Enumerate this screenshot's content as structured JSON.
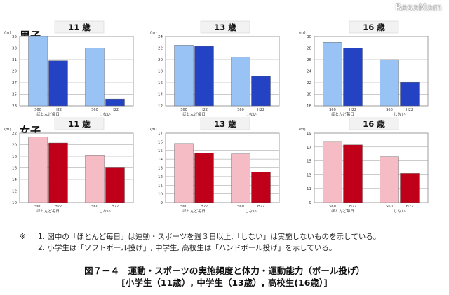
{
  "watermark": "ReseMom",
  "labels": {
    "boys": "男子",
    "girls": "女子"
  },
  "colors": {
    "boys_s60": "#99c3f5",
    "boys_h22": "#2443c4",
    "girls_s60": "#f6bcc6",
    "girls_h22": "#c00018"
  },
  "notes": {
    "mark": "※",
    "line1": "1. 図中の「ほとんど毎日」は運動・スポーツを週３日以上,「しない」は実施しないものを示している。",
    "line2": "2. 小学生は「ソフトボール投げ」, 中学生, 高校生は「ハンドボール投げ」を示している。"
  },
  "caption": {
    "line1": "図７－４　運動・スポーツの実施頻度と体力・運動能力（ボール投げ）",
    "line2": "[小学生（11歳）, 中学生（13歳）, 高校生(16歳）]"
  },
  "chart_data": [
    {
      "type": "bar",
      "title": "11 歳",
      "ylabel": "(m)",
      "ylim": [
        23,
        35
      ],
      "yticks": [
        23,
        25,
        27,
        29,
        31,
        33,
        35
      ],
      "categories": [
        "ほとんど毎日",
        "しない"
      ],
      "series": [
        {
          "name": "S60",
          "values": [
            35.0,
            33.0
          ]
        },
        {
          "name": "H22",
          "values": [
            30.8,
            24.2
          ]
        }
      ]
    },
    {
      "type": "bar",
      "title": "13 歳",
      "ylabel": "(m)",
      "ylim": [
        12,
        24
      ],
      "yticks": [
        12,
        14,
        16,
        18,
        20,
        22,
        24
      ],
      "categories": [
        "ほとんど毎日",
        "しない"
      ],
      "series": [
        {
          "name": "S60",
          "values": [
            22.5,
            20.4
          ]
        },
        {
          "name": "H22",
          "values": [
            22.3,
            17.1
          ]
        }
      ]
    },
    {
      "type": "bar",
      "title": "16 歳",
      "ylabel": "(m)",
      "ylim": [
        18,
        30
      ],
      "yticks": [
        18,
        20,
        22,
        24,
        26,
        28,
        30
      ],
      "categories": [
        "ほとんど毎日",
        "しない"
      ],
      "series": [
        {
          "name": "S60",
          "values": [
            29.0,
            26.0
          ]
        },
        {
          "name": "H22",
          "values": [
            28.0,
            22.1
          ]
        }
      ]
    },
    {
      "type": "bar",
      "title": "11 歳",
      "ylabel": "(m)",
      "ylim": [
        10,
        22
      ],
      "yticks": [
        10,
        12,
        14,
        16,
        18,
        20,
        22
      ],
      "categories": [
        "ほとんど毎日",
        "しない"
      ],
      "series": [
        {
          "name": "S60",
          "values": [
            21.3,
            18.2
          ]
        },
        {
          "name": "H22",
          "values": [
            20.3,
            16.0
          ]
        }
      ]
    },
    {
      "type": "bar",
      "title": "13 歳",
      "ylabel": "(m)",
      "ylim": [
        9,
        17
      ],
      "yticks": [
        9,
        10,
        11,
        12,
        13,
        14,
        15,
        16,
        17
      ],
      "categories": [
        "ほとんど毎日",
        "しない"
      ],
      "series": [
        {
          "name": "S60",
          "values": [
            15.8,
            14.6
          ]
        },
        {
          "name": "H22",
          "values": [
            14.7,
            12.5
          ]
        }
      ]
    },
    {
      "type": "bar",
      "title": "16 歳",
      "ylabel": "(m)",
      "ylim": [
        9,
        19
      ],
      "yticks": [
        9,
        11,
        13,
        15,
        17,
        19
      ],
      "categories": [
        "ほとんど毎日",
        "しない"
      ],
      "series": [
        {
          "name": "S60",
          "values": [
            17.8,
            15.6
          ]
        },
        {
          "name": "H22",
          "values": [
            17.3,
            13.2
          ]
        }
      ]
    }
  ]
}
